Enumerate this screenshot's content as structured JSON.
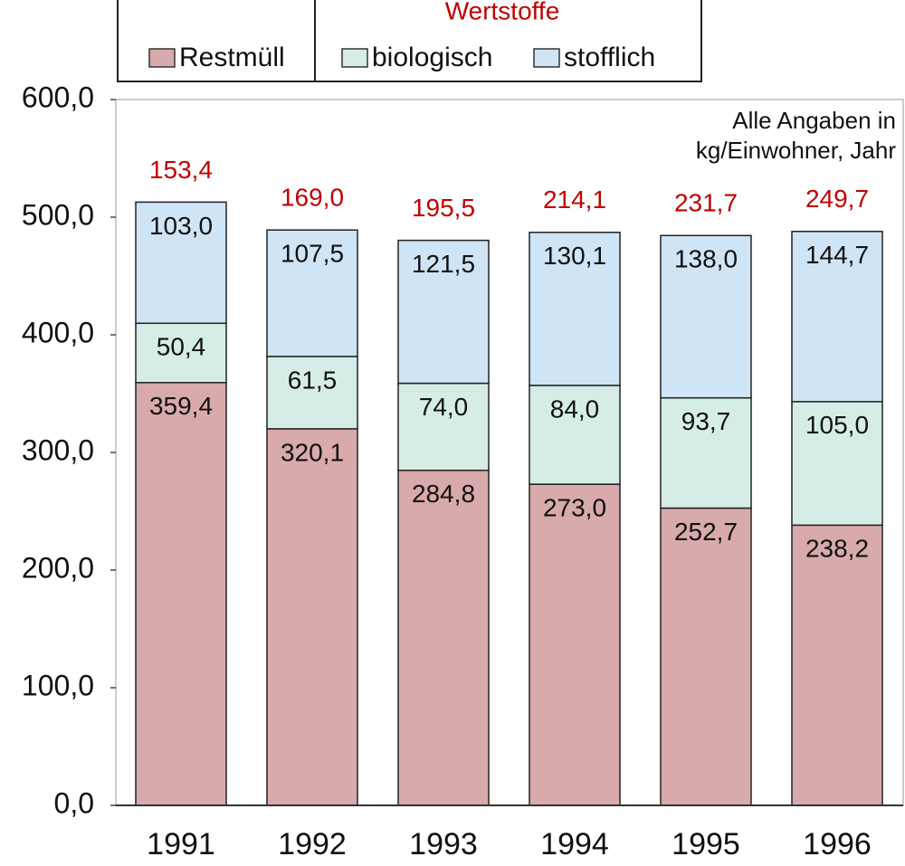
{
  "chart_data": {
    "type": "stacked_bar",
    "legend_group_title": "Wertstoffe",
    "annotation": [
      "Alle Angaben in",
      "kg/Einwohner, Jahr"
    ],
    "categories": [
      "1991",
      "1992",
      "1993",
      "1994",
      "1995",
      "1996"
    ],
    "series": [
      {
        "name": "Restmüll",
        "color": "#d8aaab",
        "values": [
          359.4,
          320.1,
          284.8,
          273.0,
          252.7,
          238.2
        ],
        "value_labels": [
          "359,4",
          "320,1",
          "284,8",
          "273,0",
          "252,7",
          "238,2"
        ]
      },
      {
        "name": "biologisch",
        "color": "#d6ede7",
        "values": [
          50.4,
          61.5,
          74.0,
          84.0,
          93.7,
          105.0
        ],
        "value_labels": [
          "50,4",
          "61,5",
          "74,0",
          "84,0",
          "93,7",
          "105,0"
        ]
      },
      {
        "name": "stofflich",
        "color": "#cfe4f4",
        "values": [
          103.0,
          107.5,
          121.5,
          130.1,
          138.0,
          144.7
        ],
        "value_labels": [
          "103,0",
          "107,5",
          "121,5",
          "130,1",
          "138,0",
          "144,7"
        ]
      }
    ],
    "totals": {
      "color": "#c00000",
      "values": [
        153.4,
        169.0,
        195.5,
        214.1,
        231.7,
        249.7
      ],
      "value_labels": [
        "153,4",
        "169,0",
        "195,5",
        "214,1",
        "231,7",
        "249,7"
      ]
    },
    "ylim": [
      0,
      600
    ],
    "yticks": [
      {
        "value": 0,
        "label": "0,0"
      },
      {
        "value": 100,
        "label": "100,0"
      },
      {
        "value": 200,
        "label": "200,0"
      },
      {
        "value": 300,
        "label": "300,0"
      },
      {
        "value": 400,
        "label": "400,0"
      },
      {
        "value": 500,
        "label": "500,0"
      },
      {
        "value": 600,
        "label": "600,0"
      }
    ]
  }
}
